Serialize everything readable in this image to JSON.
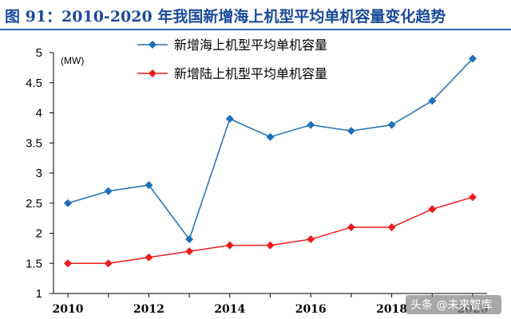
{
  "title": "图 91：2010-2020 年我国新增海上机型平均单机容量变化趋势",
  "watermark": "头条 @未来智库",
  "chart_data": {
    "type": "line",
    "unit_label": "(MW)",
    "x": [
      2010,
      2011,
      2012,
      2013,
      2014,
      2015,
      2016,
      2017,
      2018,
      2019,
      2020
    ],
    "x_ticks": [
      "2010",
      "2012",
      "2014",
      "2016",
      "2018",
      "2020"
    ],
    "y_ticks": [
      "1",
      "1.5",
      "2",
      "2.5",
      "3",
      "3.5",
      "4",
      "4.5",
      "5"
    ],
    "ylim": [
      1,
      5
    ],
    "xlim": [
      2010,
      2020
    ],
    "grid": false,
    "legend_position": "top",
    "series": [
      {
        "name": "新增海上机型平均单机容量",
        "color": "#1f6fba",
        "marker": "diamond",
        "values": [
          2.5,
          2.7,
          2.8,
          1.9,
          3.9,
          3.6,
          3.8,
          3.7,
          3.8,
          4.2,
          4.9
        ]
      },
      {
        "name": "新增陆上机型平均单机容量",
        "color": "#ee1c1c",
        "marker": "diamond",
        "values": [
          1.5,
          1.5,
          1.6,
          1.7,
          1.8,
          1.8,
          1.9,
          2.1,
          2.1,
          2.4,
          2.6
        ]
      }
    ]
  }
}
